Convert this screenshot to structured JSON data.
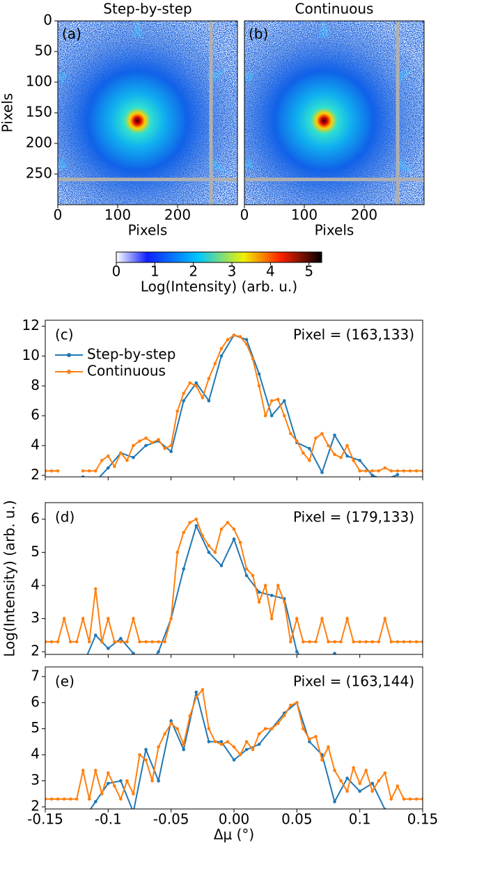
{
  "chart_data": [
    {
      "type": "heatmap",
      "title": "Step-by-step",
      "panel_label": "(a)",
      "xlabel": "Pixels",
      "ylabel": "Pixels",
      "xlim": [
        0,
        300
      ],
      "ylim": [
        0,
        300
      ],
      "xticks": [
        0,
        100,
        200
      ],
      "yticks": [
        0,
        50,
        100,
        150,
        200,
        250
      ]
    },
    {
      "type": "heatmap",
      "title": "Continuous",
      "panel_label": "(b)",
      "xlabel": "Pixels",
      "xlim": [
        0,
        300
      ],
      "ylim": [
        0,
        300
      ],
      "xticks": [
        0,
        100,
        200
      ]
    },
    {
      "type": "colorbar",
      "label": "Log(Intensity) (arb. u.)",
      "xlim": [
        0,
        5.33
      ],
      "xticks": [
        0,
        1,
        2,
        3,
        4,
        5
      ]
    },
    {
      "type": "line",
      "panel_label": "(c)",
      "annotation": "Pixel = (163,133)",
      "legend": "upper left",
      "xlim": [
        -0.15,
        0.15
      ],
      "ylim": [
        1.9,
        12.4
      ],
      "yticks": [
        2,
        4,
        6,
        8,
        10,
        12
      ],
      "series": [
        {
          "name": "Step-by-step",
          "color": "#1f77b4",
          "x": [
            -0.15,
            -0.14,
            -0.13,
            -0.12,
            -0.11,
            -0.1,
            -0.09,
            -0.08,
            -0.07,
            -0.06,
            -0.05,
            -0.04,
            -0.03,
            -0.02,
            -0.01,
            0,
            0.01,
            0.02,
            0.03,
            0.04,
            0.05,
            0.06,
            0.07,
            0.08,
            0.09,
            0.1,
            0.11,
            0.12,
            0.13,
            0.14,
            0.15
          ],
          "values": [
            null,
            null,
            null,
            1.9,
            1.6,
            2.5,
            3.5,
            3.2,
            4.0,
            4.3,
            3.6,
            7.0,
            8.2,
            7.0,
            10.0,
            11.4,
            11.1,
            8.8,
            6.0,
            7.0,
            4.2,
            3.8,
            2.2,
            4.7,
            3.3,
            3.0,
            2.0,
            1.7,
            2.05,
            null,
            null
          ]
        },
        {
          "name": "Continuous",
          "color": "#ff7f0e",
          "x": [
            -0.15,
            -0.145,
            -0.14,
            -0.135,
            -0.13,
            -0.125,
            -0.12,
            -0.115,
            -0.11,
            -0.105,
            -0.1,
            -0.095,
            -0.09,
            -0.085,
            -0.08,
            -0.075,
            -0.07,
            -0.065,
            -0.06,
            -0.055,
            -0.05,
            -0.045,
            -0.04,
            -0.035,
            -0.03,
            -0.025,
            -0.02,
            -0.015,
            -0.01,
            -0.005,
            0,
            0.005,
            0.01,
            0.015,
            0.02,
            0.025,
            0.03,
            0.035,
            0.04,
            0.045,
            0.05,
            0.055,
            0.06,
            0.065,
            0.07,
            0.075,
            0.08,
            0.085,
            0.09,
            0.095,
            0.1,
            0.105,
            0.11,
            0.115,
            0.12,
            0.125,
            0.13,
            0.135,
            0.14,
            0.145,
            0.15
          ],
          "values": [
            2.3,
            2.3,
            2.3,
            null,
            null,
            null,
            2.3,
            2.3,
            2.3,
            3.0,
            3.3,
            2.6,
            3.5,
            3.0,
            4.0,
            4.3,
            4.5,
            4.2,
            4.4,
            3.8,
            4.0,
            6.3,
            7.5,
            8.2,
            8.0,
            7.2,
            8.5,
            9.5,
            10.5,
            11.1,
            11.4,
            11.3,
            10.8,
            9.8,
            8.0,
            6.0,
            7.0,
            7.1,
            6.0,
            4.8,
            4.3,
            3.5,
            3.0,
            4.5,
            4.8,
            4.0,
            3.4,
            3.2,
            4.0,
            3.0,
            2.3,
            2.3,
            2.3,
            2.3,
            2.5,
            2.3,
            2.3,
            2.3,
            2.3,
            2.3,
            2.3
          ]
        }
      ]
    },
    {
      "type": "line",
      "panel_label": "(d)",
      "annotation": "Pixel = (179,133)",
      "ylabel": "Log(Intensity) (arb. u.)",
      "xlim": [
        -0.15,
        0.15
      ],
      "ylim": [
        1.92,
        6.5
      ],
      "yticks": [
        2,
        3,
        4,
        5,
        6
      ],
      "series": [
        {
          "name": "Step-by-step",
          "color": "#1f77b4",
          "x": [
            -0.15,
            -0.14,
            -0.13,
            -0.12,
            -0.11,
            -0.1,
            -0.09,
            -0.08,
            -0.07,
            -0.06,
            -0.05,
            -0.04,
            -0.03,
            -0.02,
            -0.01,
            0,
            0.01,
            0.02,
            0.03,
            0.04,
            0.05,
            0.06,
            0.07,
            0.08,
            0.09,
            0.1,
            0.11,
            0.12,
            0.13,
            0.14,
            0.15
          ],
          "values": [
            null,
            null,
            null,
            1.6,
            2.5,
            2.1,
            2.4,
            1.95,
            1.5,
            2.0,
            3.0,
            4.5,
            5.8,
            5.0,
            4.6,
            5.4,
            4.3,
            3.8,
            3.7,
            3.6,
            2.0,
            1.5,
            null,
            1.95,
            null,
            null,
            null,
            null,
            null,
            null,
            null
          ]
        },
        {
          "name": "Continuous",
          "color": "#ff7f0e",
          "x": [
            -0.15,
            -0.145,
            -0.14,
            -0.135,
            -0.13,
            -0.125,
            -0.12,
            -0.115,
            -0.11,
            -0.105,
            -0.1,
            -0.095,
            -0.09,
            -0.085,
            -0.08,
            -0.075,
            -0.07,
            -0.065,
            -0.06,
            -0.055,
            -0.05,
            -0.045,
            -0.04,
            -0.035,
            -0.03,
            -0.025,
            -0.02,
            -0.015,
            -0.01,
            -0.005,
            0,
            0.005,
            0.01,
            0.015,
            0.02,
            0.025,
            0.03,
            0.035,
            0.04,
            0.045,
            0.05,
            0.055,
            0.06,
            0.065,
            0.07,
            0.075,
            0.08,
            0.085,
            0.09,
            0.095,
            0.1,
            0.105,
            0.11,
            0.115,
            0.12,
            0.125,
            0.13,
            0.135,
            0.14,
            0.145,
            0.15
          ],
          "values": [
            2.3,
            2.3,
            2.3,
            3.0,
            2.3,
            2.3,
            3.0,
            2.3,
            3.9,
            2.3,
            3.0,
            2.3,
            2.3,
            2.3,
            3.0,
            2.3,
            2.3,
            2.3,
            2.3,
            2.3,
            3.0,
            5.0,
            5.6,
            5.9,
            6.0,
            5.5,
            5.2,
            5.0,
            5.7,
            5.9,
            5.7,
            5.3,
            4.5,
            4.3,
            3.5,
            4.0,
            3.0,
            4.0,
            3.5,
            2.3,
            3.0,
            2.3,
            2.3,
            2.3,
            3.0,
            2.3,
            2.3,
            2.3,
            3.0,
            2.3,
            2.3,
            2.3,
            2.3,
            2.3,
            3.0,
            2.3,
            2.3,
            2.3,
            2.3,
            2.3,
            2.3
          ]
        }
      ]
    },
    {
      "type": "line",
      "panel_label": "(e)",
      "annotation": "Pixel = (163,144)",
      "xlabel": "Δμ (°)",
      "xlim": [
        -0.15,
        0.15
      ],
      "ylim": [
        1.92,
        7.37
      ],
      "yticks": [
        2,
        3,
        4,
        5,
        6,
        7
      ],
      "xticks": [
        -0.15,
        -0.1,
        -0.05,
        {
          "value": 0,
          "label": "0.00"
        },
        0.05,
        0.1,
        0.15
      ],
      "series": [
        {
          "name": "Step-by-step",
          "color": "#1f77b4",
          "x": [
            -0.15,
            -0.14,
            -0.13,
            -0.12,
            -0.11,
            -0.1,
            -0.09,
            -0.08,
            -0.07,
            -0.06,
            -0.05,
            -0.04,
            -0.03,
            -0.02,
            -0.01,
            0,
            0.01,
            0.02,
            0.03,
            0.04,
            0.05,
            0.06,
            0.07,
            0.08,
            0.09,
            0.1,
            0.11,
            0.12,
            0.13,
            0.14,
            0.15
          ],
          "values": [
            null,
            null,
            null,
            1.5,
            2.2,
            2.9,
            3.0,
            1.8,
            4.2,
            3.0,
            5.3,
            4.2,
            6.4,
            4.5,
            4.5,
            3.8,
            4.2,
            4.4,
            5.0,
            5.6,
            6.0,
            4.5,
            4.0,
            2.2,
            3.1,
            2.6,
            2.9,
            1.9,
            1.5,
            null,
            null
          ]
        },
        {
          "name": "Continuous",
          "color": "#ff7f0e",
          "x": [
            -0.15,
            -0.145,
            -0.14,
            -0.135,
            -0.13,
            -0.125,
            -0.12,
            -0.115,
            -0.11,
            -0.105,
            -0.1,
            -0.095,
            -0.09,
            -0.085,
            -0.08,
            -0.075,
            -0.07,
            -0.065,
            -0.06,
            -0.055,
            -0.05,
            -0.045,
            -0.04,
            -0.035,
            -0.03,
            -0.025,
            -0.02,
            -0.015,
            -0.01,
            -0.005,
            0,
            0.005,
            0.01,
            0.015,
            0.02,
            0.025,
            0.03,
            0.035,
            0.04,
            0.045,
            0.05,
            0.055,
            0.06,
            0.065,
            0.07,
            0.075,
            0.08,
            0.085,
            0.09,
            0.095,
            0.1,
            0.105,
            0.11,
            0.115,
            0.12,
            0.125,
            0.13,
            0.135,
            0.14,
            0.145,
            0.15
          ],
          "values": [
            2.3,
            2.3,
            2.3,
            2.3,
            2.3,
            2.3,
            3.4,
            2.3,
            3.4,
            2.5,
            3.3,
            2.8,
            2.3,
            3.0,
            2.5,
            4.0,
            3.8,
            3.0,
            4.3,
            4.8,
            5.2,
            5.0,
            4.4,
            5.5,
            6.2,
            6.5,
            5.0,
            4.5,
            4.4,
            4.5,
            4.3,
            4.0,
            4.5,
            4.2,
            4.8,
            5.0,
            5.0,
            5.2,
            5.5,
            5.9,
            6.0,
            5.0,
            4.6,
            4.7,
            3.8,
            4.3,
            3.4,
            3.0,
            2.6,
            3.5,
            2.9,
            3.4,
            2.6,
            3.0,
            3.3,
            2.3,
            2.8,
            2.3,
            2.3,
            2.3,
            2.3
          ]
        }
      ]
    }
  ]
}
